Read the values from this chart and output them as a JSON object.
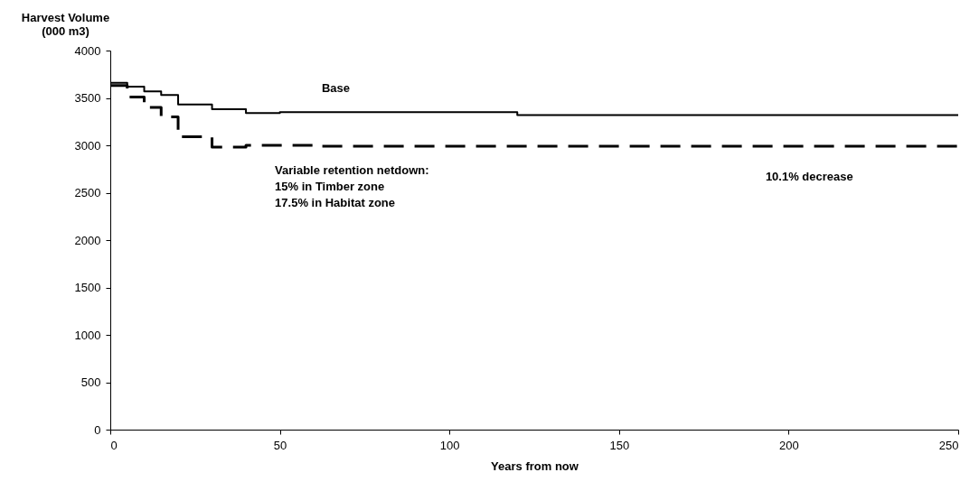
{
  "chart_data": {
    "type": "step",
    "xlabel": "Years from now",
    "ylabel": "Harvest Volume\n(000 m3)",
    "xlim": [
      0,
      250
    ],
    "xticks": [
      0,
      50,
      100,
      150,
      200,
      250
    ],
    "ylim": [
      0,
      4000
    ],
    "yticks": [
      0,
      500,
      1000,
      1500,
      2000,
      2500,
      3000,
      3500,
      4000
    ],
    "grid": false,
    "series": [
      {
        "color": "#000000",
        "line_style": "solid",
        "x": [
          0,
          5,
          10,
          15,
          20,
          30,
          40,
          50,
          120,
          250
        ],
        "values": [
          3660,
          3620,
          3570,
          3530,
          3430,
          3380,
          3340,
          3350,
          3320,
          3320
        ]
      },
      {
        "color": "#000000",
        "line_style": "dashed",
        "x": [
          0,
          5,
          10,
          15,
          20,
          30,
          40,
          60,
          250
        ],
        "values": [
          3630,
          3510,
          3400,
          3300,
          3090,
          2980,
          3000,
          2990,
          2990
        ]
      }
    ],
    "annotations": [
      {
        "text": "Base",
        "x": 65,
        "y": 3350
      },
      {
        "text": "Variable retention netdown:\n15% in Timber zone\n17.5% in Habitat zone",
        "x": 48,
        "y": 3000
      },
      {
        "text": "10.1% decrease",
        "x": 190,
        "y": 2990
      }
    ]
  }
}
